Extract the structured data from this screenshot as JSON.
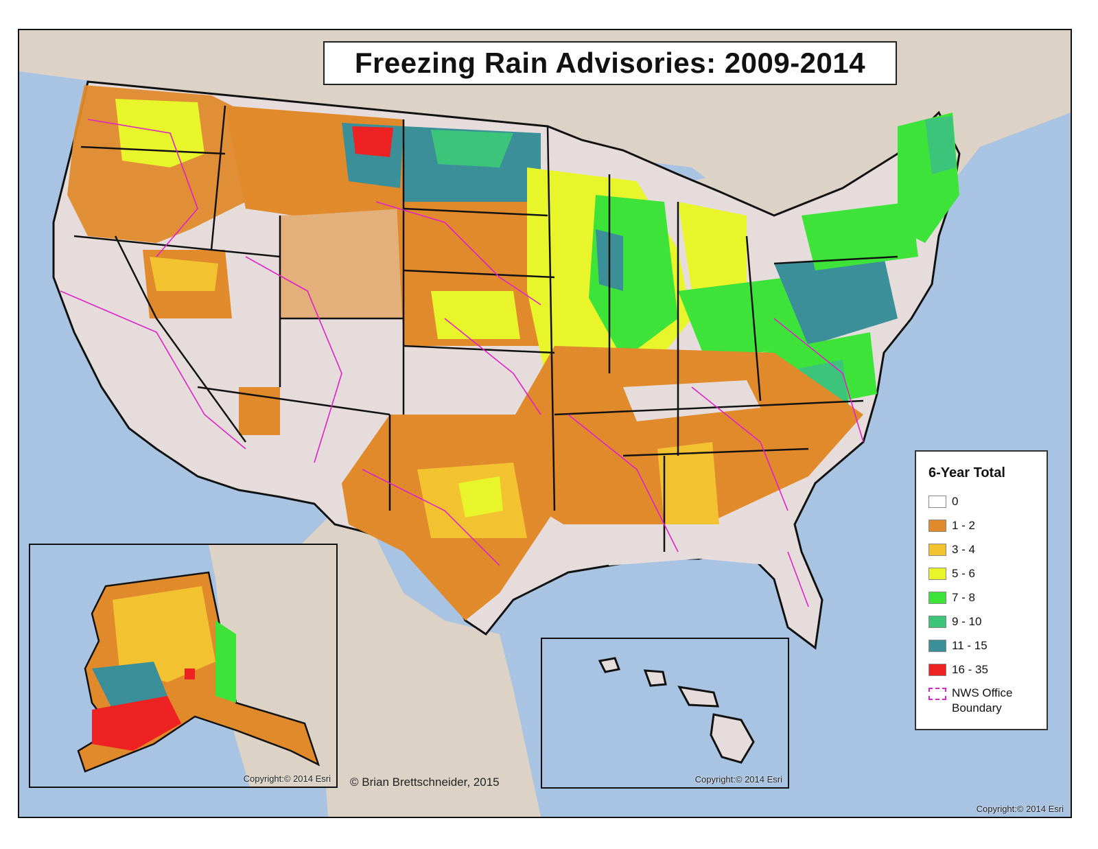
{
  "title": "Freezing Rain Advisories: 2009-2014",
  "legend": {
    "title": "6-Year Total",
    "items": [
      {
        "label": "0",
        "color": "#ffffff"
      },
      {
        "label": "1 - 2",
        "color": "#e08a2c"
      },
      {
        "label": "3 - 4",
        "color": "#f2c230"
      },
      {
        "label": "5 - 6",
        "color": "#e8f52a"
      },
      {
        "label": "7 - 8",
        "color": "#3ee33a"
      },
      {
        "label": "9 - 10",
        "color": "#3cc47a"
      },
      {
        "label": "11 - 15",
        "color": "#3a8f98"
      },
      {
        "label": "16 - 35",
        "color": "#ee2222"
      }
    ],
    "boundary_label_line1": "NWS Office",
    "boundary_label_line2": "Boundary",
    "boundary_color": "#e020c8"
  },
  "copyright_alaska": "Copyright:© 2014 Esri",
  "copyright_hawaii": "Copyright:© 2014 Esri",
  "copyright_main": "Copyright:© 2014 Esri",
  "credit": "© Brian Brettschneider, 2015",
  "colors": {
    "ocean": "#a9c3e2",
    "land_context": "#dcd2c6",
    "state_border": "#111111",
    "no_data": "#e6dcdc"
  }
}
